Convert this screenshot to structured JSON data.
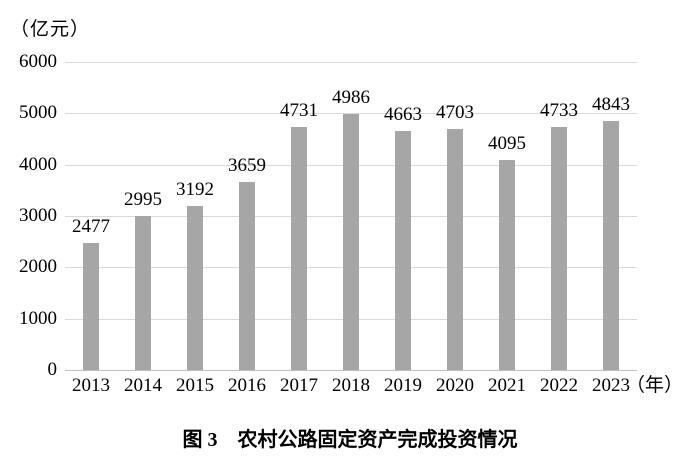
{
  "unit_label": "（亿元）",
  "x_axis_suffix": "（年）",
  "caption": "图 3　农村公路固定资产完成投资情况",
  "chart_data": {
    "type": "bar",
    "title": "图 3 农村公路固定资产完成投资情况",
    "categories": [
      "2013",
      "2014",
      "2015",
      "2016",
      "2017",
      "2018",
      "2019",
      "2020",
      "2021",
      "2022",
      "2023"
    ],
    "values": [
      2477,
      2995,
      3192,
      3659,
      4731,
      4986,
      4663,
      4703,
      4095,
      4733,
      4843
    ],
    "xlabel": "（年）",
    "ylabel": "（亿元）",
    "ylim": [
      0,
      6000
    ],
    "yticks": [
      0,
      1000,
      2000,
      3000,
      4000,
      5000,
      6000
    ],
    "grid": true,
    "legend": "none",
    "bar_color": "#a6a6a6",
    "gridline_color": "#d9d9d9",
    "baseline_color": "#bfbfbf"
  }
}
